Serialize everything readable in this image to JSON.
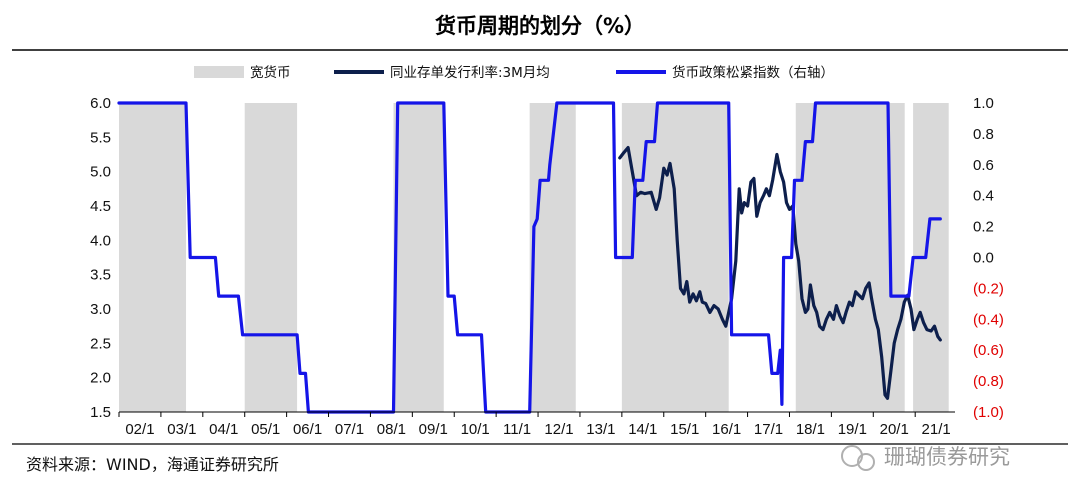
{
  "chart_data": {
    "type": "line",
    "title": "货币周期的划分（%）",
    "legend": [
      {
        "label": "宽货币",
        "kind": "band",
        "color": "#d9d9d9"
      },
      {
        "label": "同业存单发行利率:3M月均",
        "kind": "line",
        "color": "#0d1f4c"
      },
      {
        "label": "货币政策松紧指数（右轴）",
        "kind": "line",
        "color": "#1515e8"
      }
    ],
    "x_ticks": [
      "02/1",
      "03/1",
      "04/1",
      "05/1",
      "06/1",
      "07/1",
      "08/1",
      "09/1",
      "10/1",
      "11/1",
      "12/1",
      "13/1",
      "14/1",
      "15/1",
      "16/1",
      "17/1",
      "18/1",
      "19/1",
      "20/1",
      "21/1"
    ],
    "x_range": [
      2002.0,
      2021.95
    ],
    "y_left": {
      "range": [
        1.5,
        6.0
      ],
      "ticks": [
        "6.0",
        "5.5",
        "5.0",
        "4.5",
        "4.0",
        "3.5",
        "3.0",
        "2.5",
        "2.0",
        "1.5"
      ],
      "tick_values": [
        6.0,
        5.5,
        5.0,
        4.5,
        4.0,
        3.5,
        3.0,
        2.5,
        2.0,
        1.5
      ]
    },
    "y_right": {
      "range": [
        -1.0,
        1.0
      ],
      "ticks": [
        "1.0",
        "0.8",
        "0.6",
        "0.4",
        "0.2",
        "0.0",
        "(0.2)",
        "(0.4)",
        "(0.6)",
        "(0.8)",
        "(1.0)"
      ],
      "tick_values": [
        1.0,
        0.8,
        0.6,
        0.4,
        0.2,
        0.0,
        -0.2,
        -0.4,
        -0.6,
        -0.8,
        -1.0
      ],
      "negative_color": "#e00000"
    },
    "easing_periods": [
      [
        2002.0,
        2003.6
      ],
      [
        2005.0,
        2006.25
      ],
      [
        2008.55,
        2009.75
      ],
      [
        2011.8,
        2012.9
      ],
      [
        2014.0,
        2016.55
      ],
      [
        2018.15,
        2020.75
      ],
      [
        2020.95,
        2021.8
      ]
    ],
    "series": [
      {
        "name": "同业存单发行利率:3M月均",
        "axis": "left",
        "points": [
          [
            2013.95,
            5.2
          ],
          [
            2014.05,
            5.28
          ],
          [
            2014.15,
            5.35
          ],
          [
            2014.25,
            5.0
          ],
          [
            2014.35,
            4.65
          ],
          [
            2014.45,
            4.7
          ],
          [
            2014.55,
            4.68
          ],
          [
            2014.7,
            4.7
          ],
          [
            2014.82,
            4.45
          ],
          [
            2014.9,
            4.62
          ],
          [
            2015.0,
            5.05
          ],
          [
            2015.08,
            4.95
          ],
          [
            2015.15,
            5.12
          ],
          [
            2015.25,
            4.75
          ],
          [
            2015.32,
            4.0
          ],
          [
            2015.4,
            3.3
          ],
          [
            2015.48,
            3.22
          ],
          [
            2015.55,
            3.4
          ],
          [
            2015.62,
            3.1
          ],
          [
            2015.7,
            3.22
          ],
          [
            2015.78,
            3.12
          ],
          [
            2015.86,
            3.25
          ],
          [
            2015.92,
            3.1
          ],
          [
            2016.0,
            3.08
          ],
          [
            2016.1,
            2.95
          ],
          [
            2016.2,
            3.05
          ],
          [
            2016.3,
            3.0
          ],
          [
            2016.4,
            2.85
          ],
          [
            2016.48,
            2.75
          ],
          [
            2016.55,
            2.95
          ],
          [
            2016.62,
            3.15
          ],
          [
            2016.72,
            3.7
          ],
          [
            2016.8,
            4.75
          ],
          [
            2016.86,
            4.4
          ],
          [
            2016.92,
            4.55
          ],
          [
            2017.0,
            4.5
          ],
          [
            2017.08,
            4.85
          ],
          [
            2017.15,
            4.9
          ],
          [
            2017.22,
            4.35
          ],
          [
            2017.3,
            4.55
          ],
          [
            2017.38,
            4.65
          ],
          [
            2017.45,
            4.75
          ],
          [
            2017.52,
            4.65
          ],
          [
            2017.6,
            4.88
          ],
          [
            2017.7,
            5.25
          ],
          [
            2017.78,
            5.0
          ],
          [
            2017.86,
            4.85
          ],
          [
            2017.93,
            4.55
          ],
          [
            2018.0,
            4.45
          ],
          [
            2018.08,
            4.5
          ],
          [
            2018.15,
            3.95
          ],
          [
            2018.22,
            3.7
          ],
          [
            2018.3,
            3.15
          ],
          [
            2018.38,
            2.95
          ],
          [
            2018.44,
            3.0
          ],
          [
            2018.5,
            3.35
          ],
          [
            2018.58,
            3.05
          ],
          [
            2018.65,
            2.95
          ],
          [
            2018.72,
            2.75
          ],
          [
            2018.8,
            2.7
          ],
          [
            2018.88,
            2.85
          ],
          [
            2018.96,
            2.95
          ],
          [
            2019.05,
            2.85
          ],
          [
            2019.12,
            3.05
          ],
          [
            2019.2,
            2.9
          ],
          [
            2019.28,
            2.8
          ],
          [
            2019.35,
            2.95
          ],
          [
            2019.43,
            3.1
          ],
          [
            2019.5,
            3.05
          ],
          [
            2019.58,
            3.25
          ],
          [
            2019.66,
            3.2
          ],
          [
            2019.74,
            3.15
          ],
          [
            2019.82,
            3.3
          ],
          [
            2019.9,
            3.38
          ],
          [
            2019.96,
            3.15
          ],
          [
            2020.05,
            2.85
          ],
          [
            2020.12,
            2.7
          ],
          [
            2020.2,
            2.3
          ],
          [
            2020.28,
            1.75
          ],
          [
            2020.34,
            1.7
          ],
          [
            2020.42,
            2.1
          ],
          [
            2020.5,
            2.5
          ],
          [
            2020.58,
            2.7
          ],
          [
            2020.66,
            2.85
          ],
          [
            2020.74,
            3.1
          ],
          [
            2020.82,
            3.2
          ],
          [
            2020.9,
            3.0
          ],
          [
            2020.97,
            2.7
          ],
          [
            2021.05,
            2.85
          ],
          [
            2021.12,
            2.95
          ],
          [
            2021.2,
            2.8
          ],
          [
            2021.28,
            2.7
          ],
          [
            2021.38,
            2.68
          ],
          [
            2021.46,
            2.75
          ],
          [
            2021.54,
            2.6
          ],
          [
            2021.6,
            2.55
          ]
        ]
      },
      {
        "name": "货币政策松紧指数（右轴）",
        "axis": "right",
        "points": [
          [
            2002.0,
            1.0
          ],
          [
            2003.6,
            1.0
          ],
          [
            2003.7,
            0.0
          ],
          [
            2004.3,
            0.0
          ],
          [
            2004.38,
            -0.25
          ],
          [
            2004.85,
            -0.25
          ],
          [
            2004.95,
            -0.5
          ],
          [
            2006.25,
            -0.5
          ],
          [
            2006.32,
            -0.75
          ],
          [
            2006.45,
            -0.75
          ],
          [
            2006.52,
            -1.0
          ],
          [
            2008.55,
            -1.0
          ],
          [
            2008.65,
            1.0
          ],
          [
            2009.75,
            1.0
          ],
          [
            2009.85,
            -0.25
          ],
          [
            2010.0,
            -0.25
          ],
          [
            2010.08,
            -0.5
          ],
          [
            2010.65,
            -0.5
          ],
          [
            2010.75,
            -1.0
          ],
          [
            2011.8,
            -1.0
          ],
          [
            2011.9,
            0.2
          ],
          [
            2011.98,
            0.25
          ],
          [
            2012.05,
            0.5
          ],
          [
            2012.15,
            0.5
          ],
          [
            2012.25,
            0.5
          ],
          [
            2012.28,
            0.6
          ],
          [
            2012.45,
            1.0
          ],
          [
            2013.8,
            1.0
          ],
          [
            2013.85,
            0.0
          ],
          [
            2014.25,
            0.0
          ],
          [
            2014.32,
            0.5
          ],
          [
            2014.5,
            0.5
          ],
          [
            2014.58,
            0.75
          ],
          [
            2014.78,
            0.75
          ],
          [
            2014.85,
            1.0
          ],
          [
            2016.55,
            1.0
          ],
          [
            2016.62,
            -0.5
          ],
          [
            2017.5,
            -0.5
          ],
          [
            2017.58,
            -0.75
          ],
          [
            2017.72,
            -0.75
          ],
          [
            2017.78,
            -0.6
          ],
          [
            2017.82,
            -0.95
          ],
          [
            2017.86,
            0.0
          ],
          [
            2018.05,
            0.0
          ],
          [
            2018.12,
            0.5
          ],
          [
            2018.3,
            0.5
          ],
          [
            2018.38,
            0.75
          ],
          [
            2018.55,
            0.75
          ],
          [
            2018.62,
            1.0
          ],
          [
            2020.35,
            1.0
          ],
          [
            2020.42,
            -0.25
          ],
          [
            2020.85,
            -0.25
          ],
          [
            2020.95,
            0.0
          ],
          [
            2021.25,
            0.0
          ],
          [
            2021.35,
            0.25
          ],
          [
            2021.6,
            0.25
          ]
        ]
      }
    ],
    "source": "资料来源：WIND，海通证券研究所",
    "watermark": "珊瑚债券研究"
  }
}
